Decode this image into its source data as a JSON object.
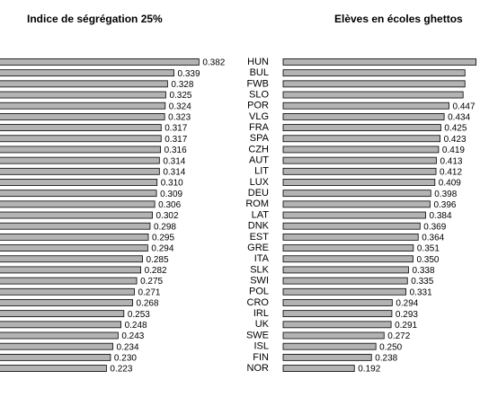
{
  "chart_data": [
    {
      "type": "barh",
      "title": "Indice de ségrégation 25%",
      "categories": [
        null,
        null,
        null,
        null,
        null,
        null,
        null,
        null,
        null,
        null,
        null,
        null,
        null,
        null,
        null,
        null,
        null,
        null,
        null,
        null,
        null,
        null,
        null,
        null,
        null,
        null,
        null,
        null,
        null
      ],
      "values": [
        0.382,
        0.339,
        0.328,
        0.325,
        0.324,
        0.323,
        0.317,
        0.317,
        0.316,
        0.314,
        0.314,
        0.31,
        0.309,
        0.306,
        0.302,
        0.298,
        0.295,
        0.294,
        0.285,
        0.282,
        0.275,
        0.271,
        0.268,
        0.253,
        0.248,
        0.243,
        0.234,
        0.23,
        0.223
      ],
      "value_labels": [
        "0.382",
        "0.339",
        "0.328",
        "0.325",
        "0.324",
        "0.323",
        "0.317",
        "0.317",
        "0.316",
        "0.314",
        "0.314",
        "0.310",
        "0.309",
        "0.306",
        "0.302",
        "0.298",
        "0.295",
        "0.294",
        "0.285",
        "0.282",
        "0.275",
        "0.271",
        "0.268",
        "0.253",
        "0.248",
        "0.243",
        "0.234",
        "0.230",
        "0.223"
      ],
      "color": "#b3b3b3",
      "xlim": [
        0,
        0.4
      ]
    },
    {
      "type": "barh",
      "title": "Elèves en écoles ghettos",
      "categories": [
        "HUN",
        "BUL",
        "FWB",
        "SLO",
        "POR",
        "VLG",
        "FRA",
        "SPA",
        "CZH",
        "AUT",
        "LIT",
        "LUX",
        "DEU",
        "ROM",
        "LAT",
        "DNK",
        "EST",
        "GRE",
        "ITA",
        "SLK",
        "SWI",
        "POL",
        "CRO",
        "IRL",
        "UK",
        "SWE",
        "ISL",
        "FIN",
        "NOR"
      ],
      "values": [
        0.52,
        0.49,
        0.49,
        0.485,
        0.447,
        0.434,
        0.425,
        0.423,
        0.419,
        0.413,
        0.412,
        0.409,
        0.398,
        0.396,
        0.384,
        0.369,
        0.364,
        0.351,
        0.35,
        0.338,
        0.335,
        0.331,
        0.294,
        0.293,
        0.291,
        0.272,
        0.25,
        0.238,
        0.192
      ],
      "value_labels": [
        null,
        null,
        null,
        null,
        "0.447",
        "0.434",
        "0.425",
        "0.423",
        "0.419",
        "0.413",
        "0.412",
        "0.409",
        "0.398",
        "0.396",
        "0.384",
        "0.369",
        "0.364",
        "0.351",
        "0.350",
        "0.338",
        "0.335",
        "0.331",
        "0.294",
        "0.293",
        "0.291",
        "0.272",
        "0.250",
        "0.238",
        "0.192"
      ],
      "color": "#b3b3b3",
      "xlim": [
        0,
        0.55
      ]
    }
  ]
}
